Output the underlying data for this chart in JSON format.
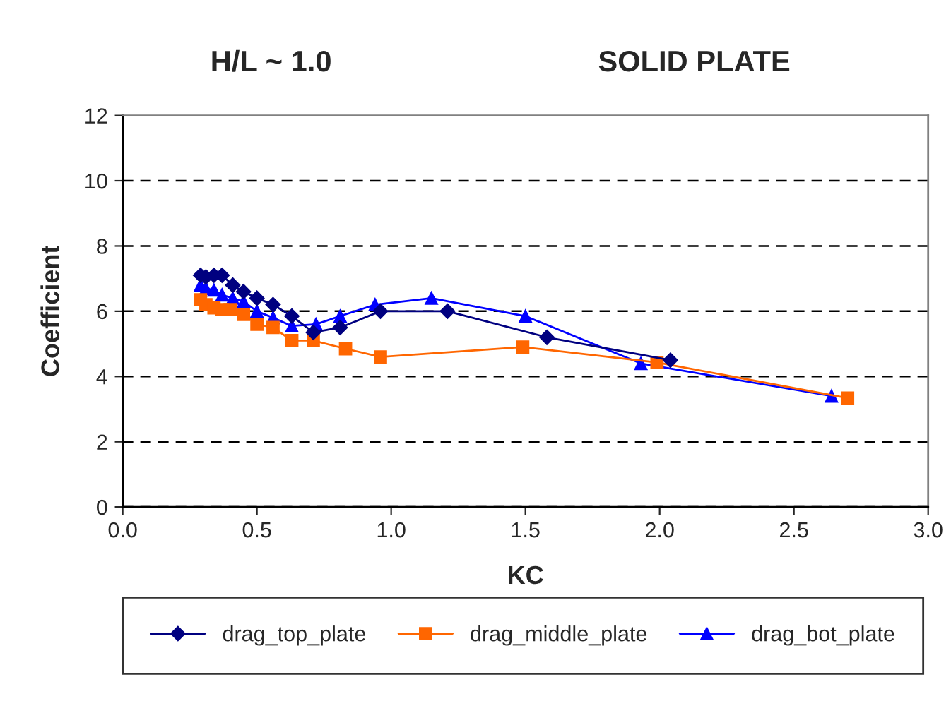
{
  "chart_data": {
    "type": "line",
    "title": "H/L ~ 1.0",
    "subtitle": "SOLID PLATE",
    "xlabel": "KC",
    "ylabel": "Coefficient",
    "xlim": [
      0,
      3
    ],
    "xticks": [
      {
        "value": 0,
        "label": "0.0"
      },
      {
        "value": 0.5,
        "label": "0.5"
      },
      {
        "value": 1,
        "label": "1.0"
      },
      {
        "value": 1.5,
        "label": "1.5"
      },
      {
        "value": 2,
        "label": "2.0"
      },
      {
        "value": 2.5,
        "label": "2.5"
      },
      {
        "value": 3,
        "label": "3.0"
      }
    ],
    "ylim": [
      0,
      12
    ],
    "yticks": [
      0,
      2,
      4,
      6,
      8,
      10,
      12
    ],
    "grid": "y",
    "legend": "bottom",
    "series": [
      {
        "name": "drag_top_plate",
        "color": "#000080",
        "marker": "diamond",
        "x": [
          0.29,
          0.31,
          0.34,
          0.37,
          0.41,
          0.45,
          0.5,
          0.56,
          0.63,
          0.71,
          0.81,
          0.96,
          1.21,
          1.58,
          2.04
        ],
        "values": [
          7.1,
          7.05,
          7.1,
          7.1,
          6.8,
          6.6,
          6.4,
          6.2,
          5.85,
          5.35,
          5.5,
          6.0,
          6.0,
          5.2,
          4.5
        ]
      },
      {
        "name": "drag_middle_plate",
        "color": "#ff6600",
        "marker": "square",
        "x": [
          0.29,
          0.31,
          0.34,
          0.37,
          0.4,
          0.45,
          0.5,
          0.56,
          0.63,
          0.71,
          0.83,
          0.96,
          1.49,
          1.99,
          2.7
        ],
        "values": [
          6.35,
          6.2,
          6.1,
          6.05,
          6.05,
          5.9,
          5.6,
          5.5,
          5.1,
          5.1,
          4.85,
          4.6,
          4.9,
          4.43,
          3.34
        ]
      },
      {
        "name": "drag_bot_plate",
        "color": "#0000ff",
        "marker": "triangle",
        "x": [
          0.29,
          0.31,
          0.34,
          0.37,
          0.41,
          0.45,
          0.5,
          0.56,
          0.63,
          0.72,
          0.81,
          0.94,
          1.15,
          1.5,
          1.93,
          2.64
        ],
        "values": [
          6.8,
          6.7,
          6.65,
          6.5,
          6.4,
          6.3,
          6.0,
          5.8,
          5.55,
          5.6,
          5.85,
          6.2,
          6.4,
          5.85,
          4.4,
          3.4
        ]
      }
    ]
  }
}
